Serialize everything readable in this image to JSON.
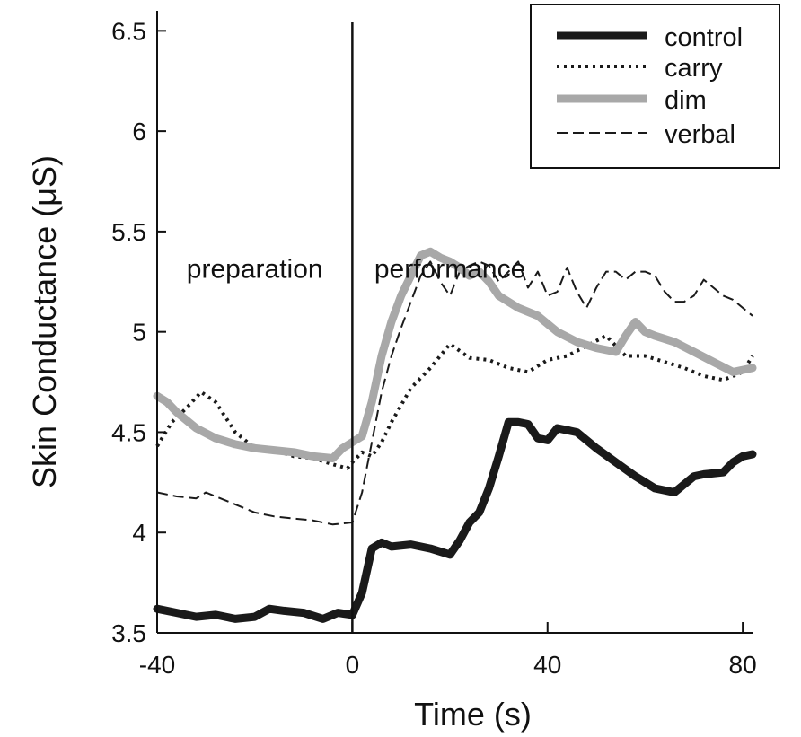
{
  "chart_data": {
    "type": "line",
    "title": "",
    "xlabel": "Time (s)",
    "ylabel": "Skin Conductance (μS)",
    "xlim": [
      -40,
      82
    ],
    "ylim": [
      3.5,
      6.6
    ],
    "xticks": [
      -40,
      0,
      40,
      80
    ],
    "xtick_labels": [
      "-40",
      "0",
      "40",
      "80"
    ],
    "yticks": [
      3.5,
      4,
      4.5,
      5,
      5.5,
      6,
      6.5
    ],
    "ytick_labels": [
      "3.5",
      "4",
      "4.5",
      "5",
      "5.5",
      "6",
      "6.5"
    ],
    "grid": false,
    "legend_position": "top-right",
    "event_line_x": 0,
    "annotations": [
      {
        "text": "preparation",
        "x": -20,
        "y": 5.27
      },
      {
        "text": "performance",
        "x": 20,
        "y": 5.27
      }
    ],
    "series": [
      {
        "name": "control",
        "color": "#1a1a1a",
        "style": "solid-thick",
        "x": [
          -40,
          -36,
          -32,
          -28,
          -24,
          -20,
          -17,
          -14,
          -10,
          -6,
          -3,
          0,
          2,
          4,
          6,
          8,
          12,
          16,
          20,
          22,
          24,
          26,
          28,
          30,
          32,
          34,
          36,
          38,
          40,
          42,
          44,
          46,
          50,
          54,
          58,
          62,
          66,
          70,
          72,
          76,
          78,
          80,
          82
        ],
        "values": [
          3.62,
          3.6,
          3.58,
          3.59,
          3.57,
          3.58,
          3.62,
          3.61,
          3.6,
          3.57,
          3.6,
          3.59,
          3.7,
          3.92,
          3.95,
          3.93,
          3.94,
          3.92,
          3.89,
          3.96,
          4.05,
          4.1,
          4.22,
          4.38,
          4.55,
          4.55,
          4.54,
          4.47,
          4.46,
          4.52,
          4.51,
          4.5,
          4.42,
          4.35,
          4.28,
          4.22,
          4.2,
          4.28,
          4.29,
          4.3,
          4.35,
          4.38,
          4.39
        ]
      },
      {
        "name": "carry",
        "color": "#1a1a1a",
        "style": "dotted",
        "x": [
          -40,
          -37,
          -34,
          -31,
          -28,
          -24,
          -20,
          -16,
          -12,
          -8,
          -4,
          -1,
          0,
          2,
          4,
          6,
          8,
          12,
          16,
          20,
          24,
          28,
          32,
          36,
          40,
          44,
          48,
          52,
          56,
          60,
          64,
          68,
          72,
          76,
          80,
          82
        ],
        "values": [
          4.43,
          4.55,
          4.62,
          4.7,
          4.65,
          4.5,
          4.42,
          4.41,
          4.38,
          4.37,
          4.34,
          4.32,
          4.35,
          4.4,
          4.38,
          4.45,
          4.55,
          4.72,
          4.82,
          4.94,
          4.87,
          4.86,
          4.82,
          4.8,
          4.86,
          4.88,
          4.93,
          4.98,
          4.88,
          4.88,
          4.85,
          4.82,
          4.78,
          4.76,
          4.8,
          4.88
        ]
      },
      {
        "name": "dim",
        "color": "#a8a8a8",
        "style": "solid-thick",
        "x": [
          -40,
          -38,
          -36,
          -32,
          -28,
          -24,
          -20,
          -16,
          -12,
          -8,
          -4,
          -2,
          0,
          2,
          4,
          6,
          8,
          10,
          12,
          14,
          16,
          18,
          20,
          22,
          24,
          26,
          28,
          30,
          34,
          38,
          42,
          46,
          50,
          54,
          56,
          58,
          60,
          62,
          66,
          70,
          74,
          78,
          82
        ],
        "values": [
          4.68,
          4.65,
          4.6,
          4.52,
          4.47,
          4.44,
          4.42,
          4.41,
          4.4,
          4.38,
          4.37,
          4.42,
          4.45,
          4.48,
          4.65,
          4.88,
          5.05,
          5.18,
          5.28,
          5.38,
          5.4,
          5.37,
          5.35,
          5.32,
          5.28,
          5.3,
          5.25,
          5.18,
          5.12,
          5.08,
          5.0,
          4.95,
          4.92,
          4.9,
          4.98,
          5.05,
          5.0,
          4.98,
          4.95,
          4.9,
          4.85,
          4.8,
          4.82
        ]
      },
      {
        "name": "verbal",
        "color": "#1a1a1a",
        "style": "dashed",
        "x": [
          -40,
          -36,
          -32,
          -30,
          -28,
          -24,
          -20,
          -16,
          -12,
          -8,
          -4,
          0,
          2,
          4,
          6,
          8,
          10,
          12,
          14,
          16,
          18,
          20,
          22,
          24,
          26,
          28,
          30,
          32,
          34,
          36,
          38,
          40,
          42,
          44,
          46,
          48,
          50,
          52,
          54,
          56,
          58,
          60,
          62,
          64,
          66,
          68,
          70,
          72,
          74,
          76,
          78,
          80,
          82
        ],
        "values": [
          4.2,
          4.18,
          4.17,
          4.2,
          4.18,
          4.14,
          4.1,
          4.08,
          4.07,
          4.06,
          4.04,
          4.05,
          4.2,
          4.45,
          4.7,
          4.88,
          5.02,
          5.15,
          5.28,
          5.35,
          5.25,
          5.18,
          5.3,
          5.33,
          5.35,
          5.33,
          5.25,
          5.3,
          5.35,
          5.22,
          5.3,
          5.18,
          5.2,
          5.32,
          5.2,
          5.12,
          5.22,
          5.3,
          5.3,
          5.26,
          5.3,
          5.3,
          5.28,
          5.2,
          5.15,
          5.15,
          5.18,
          5.26,
          5.22,
          5.18,
          5.16,
          5.12,
          5.08
        ]
      }
    ]
  }
}
